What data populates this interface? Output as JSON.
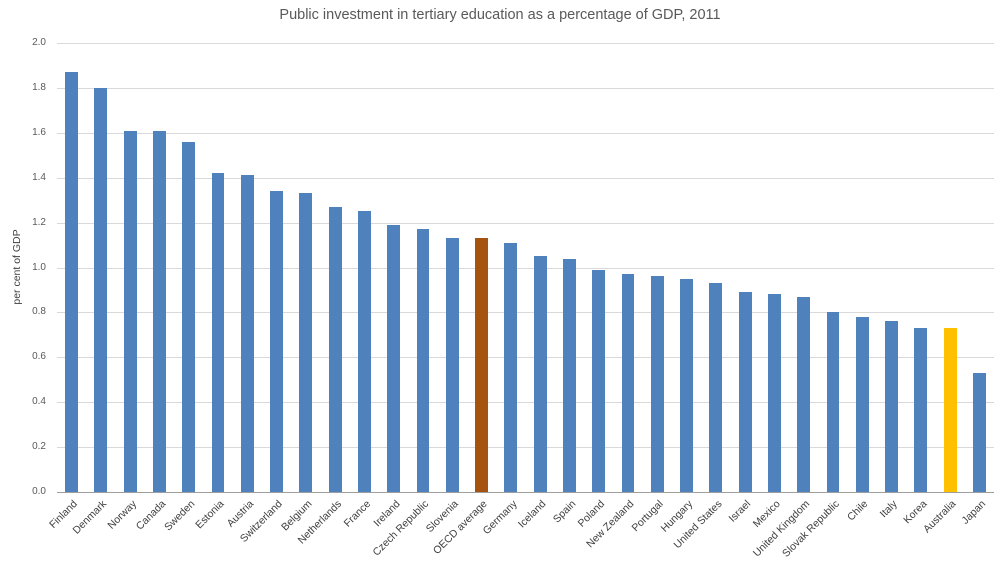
{
  "chart_data": {
    "type": "bar",
    "title": "Public investment in tertiary education as a percentage of GDP, 2011",
    "xlabel": "",
    "ylabel": "per cent of GDP",
    "ylim": [
      0,
      2.0
    ],
    "ytick_step": 0.2,
    "yticks": [
      "0.0",
      "0.2",
      "0.4",
      "0.6",
      "0.8",
      "1.0",
      "1.2",
      "1.4",
      "1.6",
      "1.8",
      "2.0"
    ],
    "grid": "horizontal",
    "legend": "none",
    "categories": [
      "Finland",
      "Denmark",
      "Norway",
      "Canada",
      "Sweden",
      "Estonia",
      "Austria",
      "Switzerland",
      "Belgium",
      "Netherlands",
      "France",
      "Ireland",
      "Czech Republic",
      "Slovenia",
      "OECD average",
      "Germany",
      "Iceland",
      "Spain",
      "Poland",
      "New Zealand",
      "Portugal",
      "Hungary",
      "United States",
      "Israel",
      "Mexico",
      "United Kingdom",
      "Slovak Republic",
      "Chile",
      "Italy",
      "Korea",
      "Australia",
      "Japan"
    ],
    "values": [
      1.87,
      1.8,
      1.61,
      1.61,
      1.56,
      1.42,
      1.41,
      1.34,
      1.33,
      1.27,
      1.25,
      1.19,
      1.17,
      1.13,
      1.13,
      1.11,
      1.05,
      1.04,
      0.99,
      0.97,
      0.96,
      0.95,
      0.93,
      0.89,
      0.88,
      0.87,
      0.8,
      0.78,
      0.76,
      0.73,
      0.73,
      0.53
    ],
    "colors": {
      "default": "#4f81bd",
      "highlights": {
        "OECD average": "#a5530f",
        "Australia": "#ffc000"
      }
    }
  }
}
